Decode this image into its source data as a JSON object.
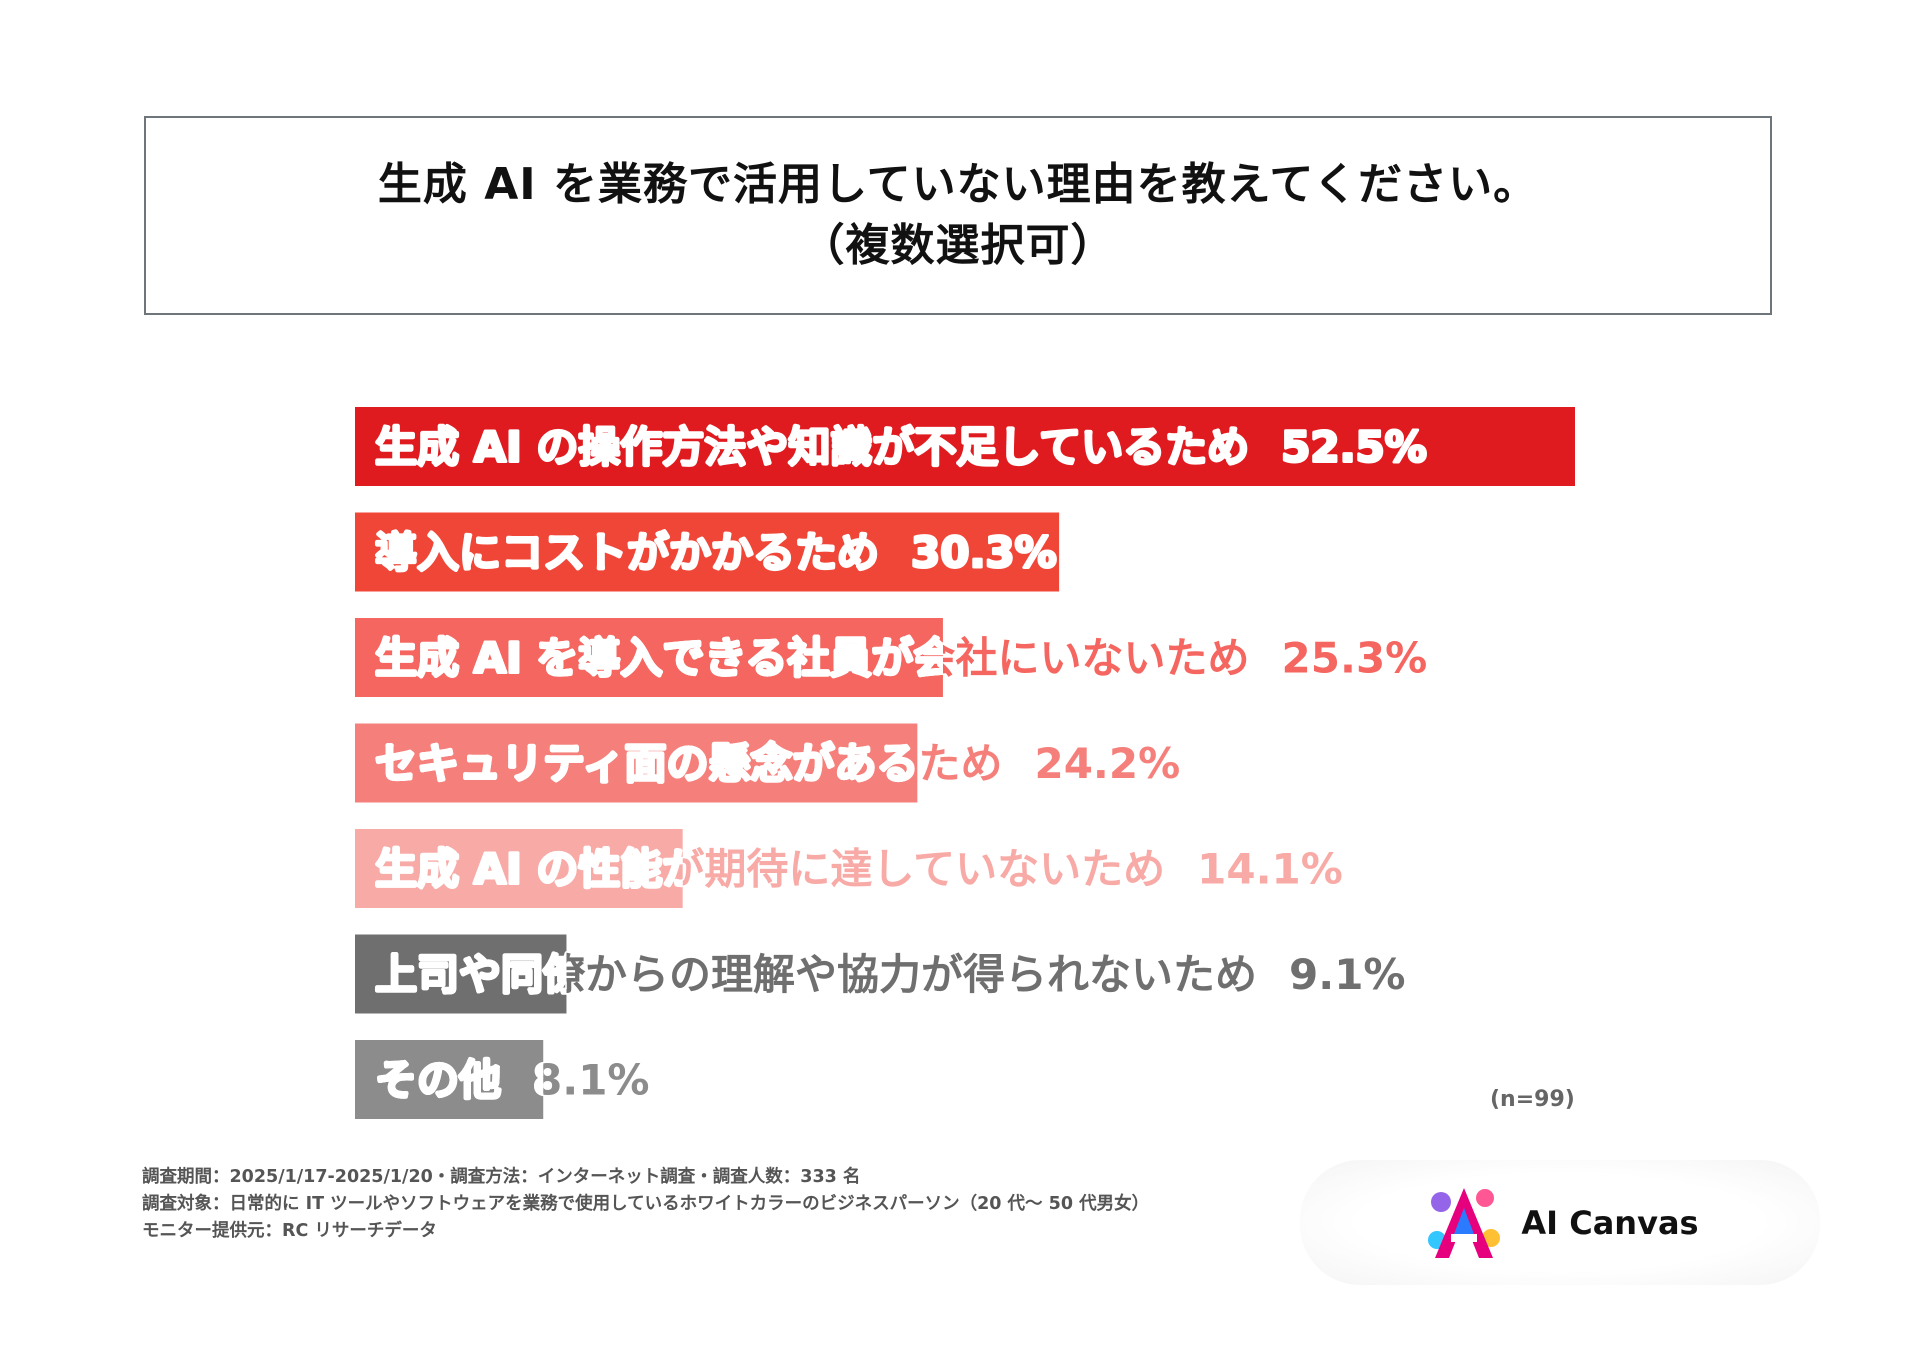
{
  "title": {
    "line1": "生成 AI を業務で活用していない理由を教えてください。",
    "line2": "（複数選択可）"
  },
  "chart_data": {
    "type": "bar",
    "orientation": "horizontal",
    "categories": [
      "生成 AI の操作方法や知識が不足しているため",
      "導入にコストがかかるため",
      "生成 AI を導入できる社員が会社にいないため",
      "セキュリティ面の懸念があるため",
      "生成 AI の性能が期待に達していないため",
      "上司や同僚からの理解や協力が得られないため",
      "その他"
    ],
    "values": [
      52.5,
      30.3,
      25.3,
      24.2,
      14.1,
      9.1,
      8.1
    ],
    "value_labels": [
      "52.5%",
      "30.3%",
      "25.3%",
      "24.2%",
      "14.1%",
      "9.1%",
      "8.1%"
    ],
    "colors": [
      "#e01b1f",
      "#f04637",
      "#f4665f",
      "#f5807b",
      "#f8aaa6",
      "#6f6f6f",
      "#8c8c8c"
    ],
    "label_colors": [
      "#ffffff",
      "#ffffff",
      "#f4665f",
      "#f5807b",
      "#f8aaa6",
      "#6f6f6f",
      "#8c8c8c"
    ],
    "xlim": [
      0,
      52.5
    ]
  },
  "sample_note": "(n=99)",
  "footnotes": [
    "調査期間：2025/1/17-2025/1/20・調査方法：インターネット調査・調査人数：333 名",
    "調査対象：日常的に IT ツールやソフトウェアを業務で使用しているホワイトカラーのビジネスパーソン（20 代〜 50 代男女）",
    "モニター提供元：RC リサーチデータ"
  ],
  "logo": {
    "text": "AI Canvas",
    "icon": "ai-canvas-logo-icon"
  }
}
